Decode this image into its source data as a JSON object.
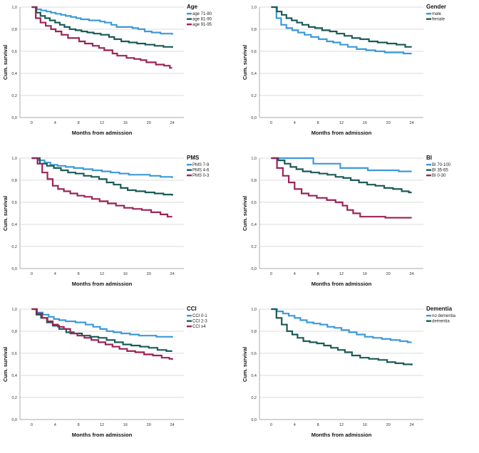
{
  "chart_data": [
    {
      "type": "line",
      "panel": "top-left",
      "title": "Age",
      "xlabel": "Months from admission",
      "ylabel": "Cum. survival",
      "xticks": [
        "0",
        "4",
        "8",
        "12",
        "16",
        "20",
        "24"
      ],
      "yticks": [
        "0,0",
        "0,2",
        "0,4",
        "0,6",
        "0,8",
        "1,0"
      ],
      "xlim": [
        -2,
        26
      ],
      "ylim": [
        0,
        1.0
      ],
      "legend": "top-right",
      "series": [
        {
          "name": "age 71-80",
          "color": "#3c9ad8",
          "x": [
            0,
            0.9,
            1.6,
            2.5,
            3.3,
            4.1,
            5,
            5.8,
            6.7,
            7.6,
            8.4,
            9.8,
            11.7,
            12.5,
            13.6,
            14.5,
            17.2,
            18.2,
            19.3,
            20.5,
            22,
            24
          ],
          "y": [
            1.0,
            0.98,
            0.97,
            0.96,
            0.95,
            0.94,
            0.93,
            0.92,
            0.91,
            0.9,
            0.89,
            0.88,
            0.87,
            0.86,
            0.84,
            0.82,
            0.81,
            0.8,
            0.78,
            0.77,
            0.76,
            0.75
          ]
        },
        {
          "name": "age 81-90",
          "color": "#1b5b56",
          "x": [
            0,
            0.8,
            1.5,
            2.3,
            3.1,
            4,
            4.8,
            5.6,
            6.5,
            7.5,
            8.5,
            9.5,
            10.6,
            11.8,
            13.2,
            14.1,
            15.3,
            16.6,
            18,
            19.4,
            21,
            22.5,
            24
          ],
          "y": [
            1.0,
            0.95,
            0.92,
            0.9,
            0.88,
            0.86,
            0.84,
            0.82,
            0.8,
            0.79,
            0.78,
            0.77,
            0.76,
            0.75,
            0.73,
            0.71,
            0.69,
            0.68,
            0.67,
            0.66,
            0.65,
            0.64,
            0.63
          ]
        },
        {
          "name": "age 91-95",
          "color": "#9c2456",
          "x": [
            0,
            0.7,
            1.5,
            2.4,
            3.3,
            4.1,
            5.1,
            6.2,
            8.1,
            9.1,
            10.4,
            11.5,
            12.4,
            13.8,
            14.6,
            16.2,
            17.5,
            18.6,
            19.6,
            21.2,
            22.6,
            23.6,
            24
          ],
          "y": [
            1.0,
            0.9,
            0.86,
            0.83,
            0.8,
            0.78,
            0.75,
            0.72,
            0.69,
            0.67,
            0.65,
            0.63,
            0.61,
            0.58,
            0.56,
            0.54,
            0.53,
            0.52,
            0.5,
            0.48,
            0.47,
            0.45,
            0.45
          ]
        }
      ]
    },
    {
      "type": "line",
      "panel": "top-right",
      "title": "Gender",
      "xlabel": "Months from admission",
      "ylabel": "Cum. survival",
      "xticks": [
        "0",
        "4",
        "8",
        "12",
        "16",
        "20",
        "24"
      ],
      "yticks": [
        "0,0",
        "0,2",
        "0,4",
        "0,6",
        "0,8",
        "1,0"
      ],
      "xlim": [
        -2,
        26
      ],
      "ylim": [
        0,
        1.0
      ],
      "legend": "top-right",
      "series": [
        {
          "name": "male",
          "color": "#3c9ad8",
          "x": [
            0,
            0.9,
            1.7,
            2.6,
            3.6,
            4.6,
            5.7,
            6.8,
            8.1,
            9.5,
            10.6,
            11.8,
            13.1,
            14.6,
            16.2,
            17.8,
            19.4,
            21,
            22.6,
            24
          ],
          "y": [
            1.0,
            0.9,
            0.84,
            0.81,
            0.79,
            0.77,
            0.75,
            0.73,
            0.71,
            0.69,
            0.68,
            0.66,
            0.64,
            0.62,
            0.61,
            0.6,
            0.59,
            0.59,
            0.58,
            0.58
          ]
        },
        {
          "name": "female",
          "color": "#1b5b56",
          "x": [
            0,
            1,
            1.8,
            2.6,
            3.5,
            4.4,
            5.3,
            6.4,
            7.5,
            8.7,
            10,
            11.2,
            12.5,
            13.8,
            15.2,
            16.7,
            18.2,
            19.8,
            21.4,
            22.9,
            24
          ],
          "y": [
            1.0,
            0.96,
            0.93,
            0.9,
            0.88,
            0.86,
            0.84,
            0.82,
            0.81,
            0.79,
            0.78,
            0.76,
            0.74,
            0.72,
            0.71,
            0.69,
            0.68,
            0.67,
            0.66,
            0.64,
            0.64
          ]
        }
      ]
    },
    {
      "type": "line",
      "panel": "middle-left",
      "title": "PMS",
      "xlabel": "Months from admission",
      "ylabel": "Cum. survival",
      "xticks": [
        "0",
        "4",
        "8",
        "12",
        "16",
        "20",
        "24"
      ],
      "yticks": [
        "0,0",
        "0,2",
        "0,4",
        "0,6",
        "0,8",
        "1,0"
      ],
      "xlim": [
        -2,
        26
      ],
      "ylim": [
        0,
        1.0
      ],
      "legend": "top-right",
      "series": [
        {
          "name": "PMS 7-9",
          "color": "#3c9ad8",
          "x": [
            0,
            1.2,
            2.2,
            3.2,
            4.4,
            5.8,
            7.2,
            8.8,
            10.4,
            12,
            13.5,
            15,
            16.6,
            18.5,
            20.2,
            22,
            24
          ],
          "y": [
            1.0,
            0.98,
            0.96,
            0.94,
            0.93,
            0.92,
            0.91,
            0.9,
            0.89,
            0.88,
            0.87,
            0.86,
            0.85,
            0.85,
            0.84,
            0.83,
            0.82
          ]
        },
        {
          "name": "PMS 4-6",
          "color": "#1b5b56",
          "x": [
            0,
            1.4,
            2.6,
            3.8,
            5,
            6.2,
            7.5,
            8.9,
            10.2,
            11.5,
            12.8,
            14,
            15.2,
            16.4,
            17.8,
            19.4,
            21,
            22.5,
            24
          ],
          "y": [
            1.0,
            0.95,
            0.93,
            0.91,
            0.89,
            0.87,
            0.86,
            0.84,
            0.83,
            0.81,
            0.78,
            0.76,
            0.73,
            0.71,
            0.7,
            0.69,
            0.68,
            0.67,
            0.66
          ]
        },
        {
          "name": "PMS 0-3",
          "color": "#9c2456",
          "x": [
            0,
            1,
            1.8,
            2.7,
            3.6,
            4.5,
            5.5,
            6.6,
            7.8,
            9,
            10.3,
            11.6,
            13,
            14.4,
            15.8,
            17.3,
            18.8,
            20.4,
            22,
            23.2,
            24
          ],
          "y": [
            1.0,
            0.95,
            0.87,
            0.81,
            0.75,
            0.72,
            0.7,
            0.68,
            0.66,
            0.65,
            0.63,
            0.61,
            0.59,
            0.57,
            0.55,
            0.54,
            0.53,
            0.51,
            0.49,
            0.47,
            0.47
          ]
        }
      ]
    },
    {
      "type": "line",
      "panel": "middle-right",
      "title": "BI",
      "xlabel": "Months from admission",
      "ylabel": "Cum. survival",
      "xticks": [
        "0",
        "4",
        "8",
        "12",
        "16",
        "20",
        "24"
      ],
      "yticks": [
        "0,0",
        "0,2",
        "0,4",
        "0,6",
        "0,8",
        "1,0"
      ],
      "xlim": [
        -2,
        26
      ],
      "ylim": [
        0,
        1.0
      ],
      "legend": "top-right",
      "series": [
        {
          "name": "BI 70-100",
          "color": "#3c9ad8",
          "x": [
            0,
            7.2,
            11.8,
            16.5,
            21.8,
            24
          ],
          "y": [
            1.0,
            0.95,
            0.91,
            0.89,
            0.88,
            0.88
          ]
        },
        {
          "name": "BI 35-65",
          "color": "#1b5b56",
          "x": [
            0,
            1.2,
            2.3,
            3.3,
            4.3,
            5.4,
            6.8,
            8.2,
            9.6,
            11,
            12.3,
            13.6,
            15,
            16.4,
            17.8,
            19.3,
            20.8,
            22.3,
            23.5,
            24
          ],
          "y": [
            1.0,
            0.98,
            0.95,
            0.92,
            0.9,
            0.88,
            0.87,
            0.86,
            0.85,
            0.83,
            0.82,
            0.8,
            0.78,
            0.76,
            0.75,
            0.73,
            0.72,
            0.7,
            0.69,
            0.69
          ]
        },
        {
          "name": "BI 0-30",
          "color": "#9c2456",
          "x": [
            0,
            1,
            2,
            3,
            4,
            5.2,
            6.4,
            7.8,
            9.5,
            11,
            12.2,
            13,
            14,
            15.2,
            17.4,
            19.5,
            22,
            24
          ],
          "y": [
            1.0,
            0.91,
            0.84,
            0.78,
            0.72,
            0.68,
            0.66,
            0.64,
            0.62,
            0.6,
            0.57,
            0.53,
            0.5,
            0.47,
            0.47,
            0.46,
            0.46,
            0.46
          ]
        }
      ]
    },
    {
      "type": "line",
      "panel": "bottom-left",
      "title": "CCI",
      "xlabel": "Months from admission",
      "ylabel": "Cum. survival",
      "xticks": [
        "0",
        "4",
        "8",
        "12",
        "16",
        "20",
        "24"
      ],
      "yticks": [
        "0,0",
        "0,2",
        "0,4",
        "0,6",
        "0,8",
        "1,0"
      ],
      "xlim": [
        -2,
        26
      ],
      "ylim": [
        0,
        1.0
      ],
      "legend": "top-right",
      "series": [
        {
          "name": "CCI 0-1",
          "color": "#3c9ad8",
          "x": [
            0,
            0.9,
            1.9,
            2.9,
            3.8,
            4.7,
            5.8,
            7.5,
            9.2,
            10.5,
            11.7,
            12.8,
            14,
            15.3,
            16.8,
            18.3,
            19.8,
            21.3,
            22.8,
            24
          ],
          "y": [
            1.0,
            0.97,
            0.95,
            0.93,
            0.91,
            0.9,
            0.89,
            0.88,
            0.86,
            0.84,
            0.82,
            0.8,
            0.79,
            0.78,
            0.77,
            0.76,
            0.76,
            0.75,
            0.75,
            0.74
          ]
        },
        {
          "name": "CCI 2-3",
          "color": "#1b5b56",
          "x": [
            0,
            0.8,
            1.6,
            2.6,
            3.6,
            4.7,
            5.9,
            7.2,
            8.6,
            10,
            11.4,
            12.8,
            14.2,
            15.6,
            17,
            18.5,
            20,
            21.5,
            23,
            24
          ],
          "y": [
            1.0,
            0.95,
            0.92,
            0.88,
            0.85,
            0.82,
            0.79,
            0.78,
            0.76,
            0.75,
            0.74,
            0.72,
            0.7,
            0.68,
            0.67,
            0.66,
            0.65,
            0.63,
            0.62,
            0.62
          ]
        },
        {
          "name": "CCI ≥4",
          "color": "#9c2456",
          "x": [
            0,
            0.9,
            1.8,
            2.7,
            3.6,
            4.5,
            5.5,
            6.6,
            7.8,
            9,
            10.2,
            11.4,
            12.6,
            13.8,
            15,
            16.3,
            17.7,
            19.2,
            20.7,
            22.2,
            23.5,
            24
          ],
          "y": [
            1.0,
            0.96,
            0.92,
            0.89,
            0.86,
            0.84,
            0.82,
            0.78,
            0.76,
            0.74,
            0.72,
            0.7,
            0.68,
            0.66,
            0.64,
            0.62,
            0.61,
            0.59,
            0.58,
            0.56,
            0.55,
            0.54
          ]
        }
      ]
    },
    {
      "type": "line",
      "panel": "bottom-right",
      "title": "Dementia",
      "xlabel": "Months from admission",
      "ylabel": "Cum. survival",
      "xticks": [
        "0",
        "4",
        "8",
        "12",
        "16",
        "20",
        "24"
      ],
      "yticks": [
        "0,0",
        "0,2",
        "0,4",
        "0,6",
        "0,8",
        "1,0"
      ],
      "xlim": [
        -2,
        26
      ],
      "ylim": [
        0,
        1.0
      ],
      "legend": "top-right",
      "series": [
        {
          "name": "no dementia",
          "color": "#3c9ad8",
          "x": [
            0,
            1,
            2,
            3,
            4,
            5,
            6.1,
            7.2,
            8.4,
            9.6,
            10.8,
            12,
            13.3,
            14.6,
            16,
            17.4,
            18.9,
            20.4,
            22,
            23.3,
            24
          ],
          "y": [
            1.0,
            0.98,
            0.96,
            0.94,
            0.92,
            0.9,
            0.88,
            0.87,
            0.86,
            0.84,
            0.83,
            0.81,
            0.79,
            0.77,
            0.75,
            0.74,
            0.73,
            0.72,
            0.71,
            0.7,
            0.7
          ]
        },
        {
          "name": "dementia",
          "color": "#1b5b56",
          "x": [
            0,
            0.9,
            1.8,
            2.7,
            3.6,
            4.5,
            5.5,
            6.6,
            7.8,
            9,
            10.2,
            11.4,
            12.6,
            13.8,
            15.2,
            16.7,
            18.3,
            19.8,
            21.2,
            22.6,
            24
          ],
          "y": [
            1.0,
            0.92,
            0.86,
            0.8,
            0.77,
            0.74,
            0.71,
            0.7,
            0.69,
            0.67,
            0.65,
            0.63,
            0.61,
            0.58,
            0.56,
            0.55,
            0.54,
            0.52,
            0.51,
            0.5,
            0.49
          ]
        }
      ]
    }
  ]
}
